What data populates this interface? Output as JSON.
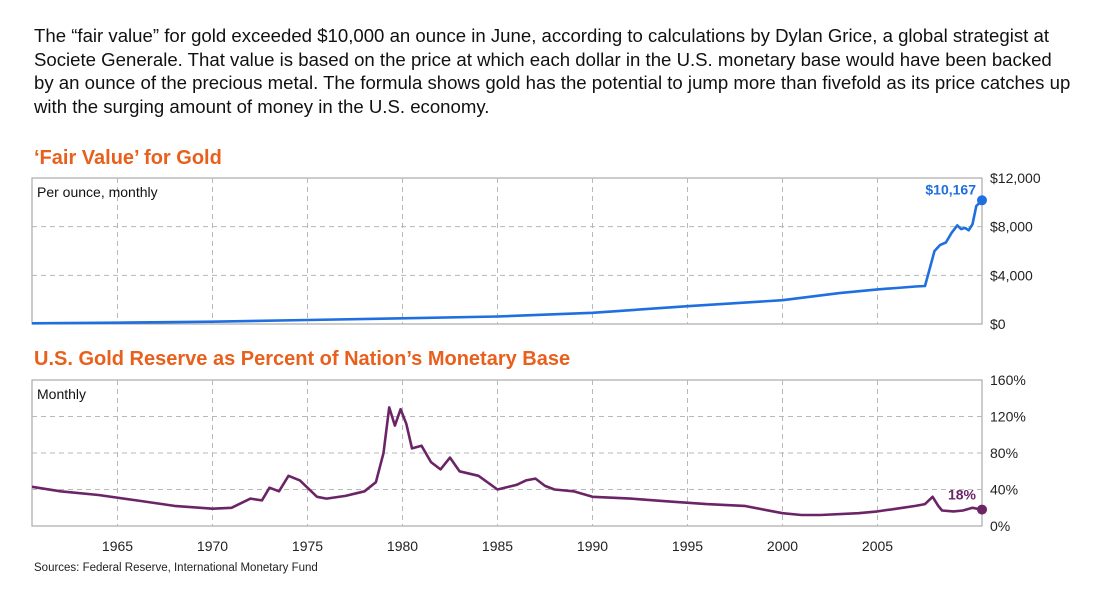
{
  "intro_text": "The “fair value” for gold exceeded $10,000 an ounce in June, according to calculations by Dylan Grice, a global strategist at Societe Generale. That value is based on the price at which each dollar in the U.S. monetary base would have been backed by an ounce of the precious metal. The formula shows gold has the potential to jump more than fivefold as its price catches up with the surging amount of money in the U.S. economy.",
  "source_text": "Sources: Federal Reserve, International Monetary Fund",
  "colors": {
    "title": "#e8601c",
    "series1": "#1f6fe0",
    "series2": "#6b2566",
    "label1": "#1f6fe0",
    "label2": "#6b2566"
  },
  "chart_data": [
    {
      "type": "line",
      "title": "‘Fair Value’ for Gold",
      "subtitle": "Per ounce, monthly",
      "ylim": [
        0,
        12000
      ],
      "yticks": [
        {
          "value": 0,
          "label": "$0"
        },
        {
          "value": 4000,
          "label": "$4,000"
        },
        {
          "value": 8000,
          "label": "$8,000"
        },
        {
          "value": 12000,
          "label": "$12,000"
        }
      ],
      "x_range": [
        1960.5,
        2010.5
      ],
      "end_label": "$10,167",
      "end_value": 10167,
      "series": [
        {
          "name": "Fair value",
          "x": [
            1960.5,
            1965,
            1970,
            1975,
            1980,
            1985,
            1990,
            1995,
            2000,
            2001,
            2003,
            2005,
            2006,
            2007,
            2007.5,
            2008.0,
            2008.3,
            2008.6,
            2008.9,
            2009.2,
            2009.4,
            2009.6,
            2009.8,
            2010.0,
            2010.2,
            2010.5
          ],
          "y": [
            60,
            110,
            190,
            330,
            470,
            620,
            920,
            1460,
            1960,
            2150,
            2540,
            2840,
            2960,
            3080,
            3120,
            6000,
            6500,
            6700,
            7500,
            8100,
            7800,
            7900,
            7700,
            8200,
            9700,
            10167
          ]
        }
      ]
    },
    {
      "type": "line",
      "title": "U.S. Gold Reserve as Percent of Nation’s Monetary Base",
      "subtitle": "Monthly",
      "ylim": [
        0,
        160
      ],
      "yticks": [
        {
          "value": 0,
          "label": "0%"
        },
        {
          "value": 40,
          "label": "40%"
        },
        {
          "value": 80,
          "label": "80%"
        },
        {
          "value": 120,
          "label": "120%"
        },
        {
          "value": 160,
          "label": "160%"
        }
      ],
      "x_range": [
        1960.5,
        2010.5
      ],
      "xticks": [
        1965,
        1970,
        1975,
        1980,
        1985,
        1990,
        1995,
        2000,
        2005
      ],
      "end_label": "18%",
      "end_value": 18,
      "series": [
        {
          "name": "Gold reserve %",
          "x": [
            1960.5,
            1962,
            1964,
            1966,
            1968,
            1970,
            1971,
            1972,
            1972.6,
            1973,
            1973.5,
            1974,
            1974.6,
            1975,
            1975.5,
            1976,
            1977,
            1978,
            1978.6,
            1979,
            1979.3,
            1979.6,
            1979.9,
            1980.2,
            1980.5,
            1981,
            1981.5,
            1982,
            1982.5,
            1983,
            1984,
            1985,
            1986,
            1986.5,
            1987,
            1987.5,
            1988,
            1989,
            1990,
            1992,
            1994,
            1996,
            1998,
            2000,
            2001,
            2002,
            2004,
            2005,
            2006,
            2007,
            2007.5,
            2007.9,
            2008.2,
            2008.4,
            2009,
            2009.5,
            2010,
            2010.5
          ],
          "y": [
            43,
            38,
            34,
            28,
            22,
            19,
            20,
            30,
            28,
            42,
            38,
            55,
            50,
            42,
            32,
            30,
            33,
            38,
            48,
            80,
            130,
            110,
            128,
            112,
            85,
            88,
            70,
            62,
            75,
            60,
            55,
            40,
            45,
            50,
            52,
            44,
            40,
            38,
            32,
            30,
            27,
            24,
            22,
            14,
            12,
            12,
            14,
            16,
            19,
            22,
            24,
            32,
            22,
            17,
            16,
            17,
            20,
            18
          ]
        }
      ]
    }
  ]
}
